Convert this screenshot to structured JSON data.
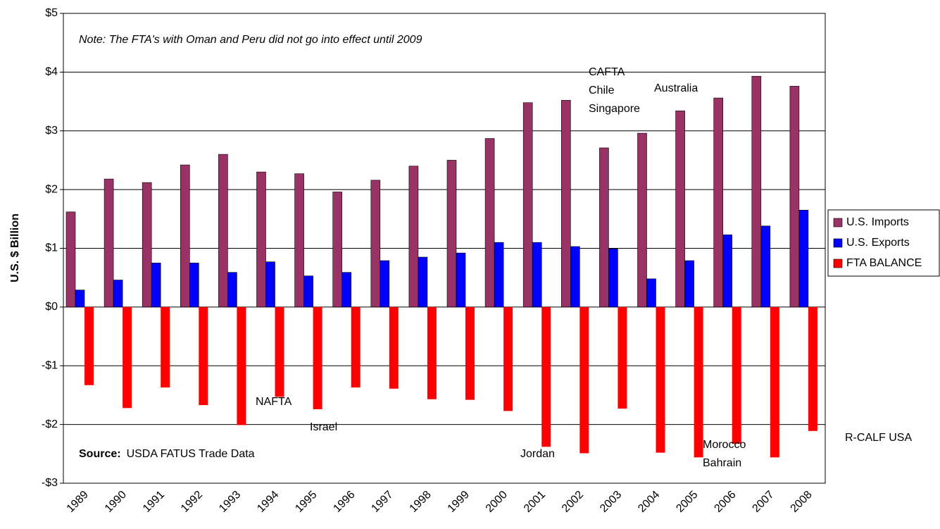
{
  "chart_data": {
    "type": "bar",
    "y_label": "U.S. $ Billion",
    "categories": [
      "1989",
      "1990",
      "1991",
      "1992",
      "1993",
      "1994",
      "1995",
      "1996",
      "1997",
      "1998",
      "1999",
      "2000",
      "2001",
      "2002",
      "2003",
      "2004",
      "2005",
      "2006",
      "2007",
      "2008"
    ],
    "series": [
      {
        "name": "U.S. Imports",
        "color": "#993366",
        "values": [
          1.62,
          2.18,
          2.12,
          2.42,
          2.6,
          2.3,
          2.27,
          1.96,
          2.16,
          2.4,
          2.5,
          2.87,
          3.48,
          3.52,
          2.71,
          2.96,
          3.34,
          3.56,
          3.93,
          3.76
        ]
      },
      {
        "name": "U.S. Exports",
        "color": "#0000ff",
        "values": [
          0.29,
          0.46,
          0.75,
          0.75,
          0.59,
          0.77,
          0.53,
          0.59,
          0.79,
          0.85,
          0.92,
          1.1,
          1.1,
          1.03,
          0.99,
          0.48,
          0.79,
          1.23,
          1.38,
          1.65
        ]
      },
      {
        "name": "FTA BALANCE",
        "color": "#ff0000",
        "values": [
          -1.33,
          -1.72,
          -1.37,
          -1.67,
          -2.01,
          -1.53,
          -1.74,
          -1.37,
          -1.39,
          -1.57,
          -1.58,
          -1.77,
          -2.38,
          -2.49,
          -1.73,
          -2.48,
          -2.56,
          -2.33,
          -2.56,
          -2.11
        ]
      }
    ],
    "ylim": [
      -3,
      5
    ],
    "yticks": [
      {
        "value": -3,
        "label": "-$3"
      },
      {
        "value": -2,
        "label": "-$2"
      },
      {
        "value": -1,
        "label": "-$1"
      },
      {
        "value": 0,
        "label": "$0"
      },
      {
        "value": 1,
        "label": "$1"
      },
      {
        "value": 2,
        "label": "$2"
      },
      {
        "value": 3,
        "label": "$3"
      },
      {
        "value": 4,
        "label": "$4"
      },
      {
        "value": 5,
        "label": "$5"
      }
    ],
    "grid": true,
    "legend": "right",
    "note": "Note:  The FTA's with Oman and Peru did not go into effect until 2009",
    "source": {
      "label": "Source:",
      "text": "USDA FATUS Trade Data"
    },
    "annotations": [
      {
        "lines": [
          "NAFTA"
        ]
      },
      {
        "lines": [
          "Israel"
        ]
      },
      {
        "lines": [
          "Jordan"
        ]
      },
      {
        "lines": [
          "CAFTA",
          "Chile",
          "Singapore"
        ]
      },
      {
        "lines": [
          "Australia"
        ]
      },
      {
        "lines": [
          "Morocco",
          "Bahrain"
        ]
      }
    ],
    "credit": "R-CALF USA"
  }
}
